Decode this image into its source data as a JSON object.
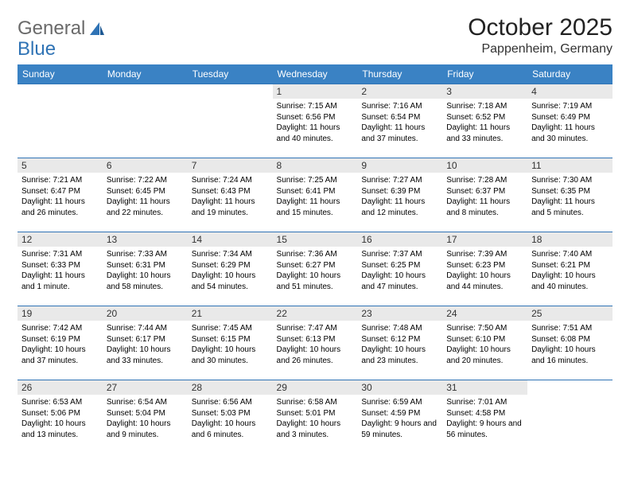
{
  "logo": {
    "text1": "General",
    "text2": "Blue"
  },
  "title": "October 2025",
  "subtitle": "Pappenheim, Germany",
  "colors": {
    "header_bg": "#3a82c4",
    "header_text": "#ffffff",
    "border": "#2f73b5",
    "daynum_bg": "#e9e9e9",
    "logo_gray": "#6a6a6a",
    "logo_blue": "#2f73b5"
  },
  "weekdays": [
    "Sunday",
    "Monday",
    "Tuesday",
    "Wednesday",
    "Thursday",
    "Friday",
    "Saturday"
  ],
  "weeks": [
    [
      {
        "empty": true
      },
      {
        "empty": true
      },
      {
        "empty": true
      },
      {
        "day": "1",
        "sunrise": "Sunrise: 7:15 AM",
        "sunset": "Sunset: 6:56 PM",
        "daylight": "Daylight: 11 hours and 40 minutes."
      },
      {
        "day": "2",
        "sunrise": "Sunrise: 7:16 AM",
        "sunset": "Sunset: 6:54 PM",
        "daylight": "Daylight: 11 hours and 37 minutes."
      },
      {
        "day": "3",
        "sunrise": "Sunrise: 7:18 AM",
        "sunset": "Sunset: 6:52 PM",
        "daylight": "Daylight: 11 hours and 33 minutes."
      },
      {
        "day": "4",
        "sunrise": "Sunrise: 7:19 AM",
        "sunset": "Sunset: 6:49 PM",
        "daylight": "Daylight: 11 hours and 30 minutes."
      }
    ],
    [
      {
        "day": "5",
        "sunrise": "Sunrise: 7:21 AM",
        "sunset": "Sunset: 6:47 PM",
        "daylight": "Daylight: 11 hours and 26 minutes."
      },
      {
        "day": "6",
        "sunrise": "Sunrise: 7:22 AM",
        "sunset": "Sunset: 6:45 PM",
        "daylight": "Daylight: 11 hours and 22 minutes."
      },
      {
        "day": "7",
        "sunrise": "Sunrise: 7:24 AM",
        "sunset": "Sunset: 6:43 PM",
        "daylight": "Daylight: 11 hours and 19 minutes."
      },
      {
        "day": "8",
        "sunrise": "Sunrise: 7:25 AM",
        "sunset": "Sunset: 6:41 PM",
        "daylight": "Daylight: 11 hours and 15 minutes."
      },
      {
        "day": "9",
        "sunrise": "Sunrise: 7:27 AM",
        "sunset": "Sunset: 6:39 PM",
        "daylight": "Daylight: 11 hours and 12 minutes."
      },
      {
        "day": "10",
        "sunrise": "Sunrise: 7:28 AM",
        "sunset": "Sunset: 6:37 PM",
        "daylight": "Daylight: 11 hours and 8 minutes."
      },
      {
        "day": "11",
        "sunrise": "Sunrise: 7:30 AM",
        "sunset": "Sunset: 6:35 PM",
        "daylight": "Daylight: 11 hours and 5 minutes."
      }
    ],
    [
      {
        "day": "12",
        "sunrise": "Sunrise: 7:31 AM",
        "sunset": "Sunset: 6:33 PM",
        "daylight": "Daylight: 11 hours and 1 minute."
      },
      {
        "day": "13",
        "sunrise": "Sunrise: 7:33 AM",
        "sunset": "Sunset: 6:31 PM",
        "daylight": "Daylight: 10 hours and 58 minutes."
      },
      {
        "day": "14",
        "sunrise": "Sunrise: 7:34 AM",
        "sunset": "Sunset: 6:29 PM",
        "daylight": "Daylight: 10 hours and 54 minutes."
      },
      {
        "day": "15",
        "sunrise": "Sunrise: 7:36 AM",
        "sunset": "Sunset: 6:27 PM",
        "daylight": "Daylight: 10 hours and 51 minutes."
      },
      {
        "day": "16",
        "sunrise": "Sunrise: 7:37 AM",
        "sunset": "Sunset: 6:25 PM",
        "daylight": "Daylight: 10 hours and 47 minutes."
      },
      {
        "day": "17",
        "sunrise": "Sunrise: 7:39 AM",
        "sunset": "Sunset: 6:23 PM",
        "daylight": "Daylight: 10 hours and 44 minutes."
      },
      {
        "day": "18",
        "sunrise": "Sunrise: 7:40 AM",
        "sunset": "Sunset: 6:21 PM",
        "daylight": "Daylight: 10 hours and 40 minutes."
      }
    ],
    [
      {
        "day": "19",
        "sunrise": "Sunrise: 7:42 AM",
        "sunset": "Sunset: 6:19 PM",
        "daylight": "Daylight: 10 hours and 37 minutes."
      },
      {
        "day": "20",
        "sunrise": "Sunrise: 7:44 AM",
        "sunset": "Sunset: 6:17 PM",
        "daylight": "Daylight: 10 hours and 33 minutes."
      },
      {
        "day": "21",
        "sunrise": "Sunrise: 7:45 AM",
        "sunset": "Sunset: 6:15 PM",
        "daylight": "Daylight: 10 hours and 30 minutes."
      },
      {
        "day": "22",
        "sunrise": "Sunrise: 7:47 AM",
        "sunset": "Sunset: 6:13 PM",
        "daylight": "Daylight: 10 hours and 26 minutes."
      },
      {
        "day": "23",
        "sunrise": "Sunrise: 7:48 AM",
        "sunset": "Sunset: 6:12 PM",
        "daylight": "Daylight: 10 hours and 23 minutes."
      },
      {
        "day": "24",
        "sunrise": "Sunrise: 7:50 AM",
        "sunset": "Sunset: 6:10 PM",
        "daylight": "Daylight: 10 hours and 20 minutes."
      },
      {
        "day": "25",
        "sunrise": "Sunrise: 7:51 AM",
        "sunset": "Sunset: 6:08 PM",
        "daylight": "Daylight: 10 hours and 16 minutes."
      }
    ],
    [
      {
        "day": "26",
        "sunrise": "Sunrise: 6:53 AM",
        "sunset": "Sunset: 5:06 PM",
        "daylight": "Daylight: 10 hours and 13 minutes."
      },
      {
        "day": "27",
        "sunrise": "Sunrise: 6:54 AM",
        "sunset": "Sunset: 5:04 PM",
        "daylight": "Daylight: 10 hours and 9 minutes."
      },
      {
        "day": "28",
        "sunrise": "Sunrise: 6:56 AM",
        "sunset": "Sunset: 5:03 PM",
        "daylight": "Daylight: 10 hours and 6 minutes."
      },
      {
        "day": "29",
        "sunrise": "Sunrise: 6:58 AM",
        "sunset": "Sunset: 5:01 PM",
        "daylight": "Daylight: 10 hours and 3 minutes."
      },
      {
        "day": "30",
        "sunrise": "Sunrise: 6:59 AM",
        "sunset": "Sunset: 4:59 PM",
        "daylight": "Daylight: 9 hours and 59 minutes."
      },
      {
        "day": "31",
        "sunrise": "Sunrise: 7:01 AM",
        "sunset": "Sunset: 4:58 PM",
        "daylight": "Daylight: 9 hours and 56 minutes."
      },
      {
        "empty": true
      }
    ]
  ]
}
